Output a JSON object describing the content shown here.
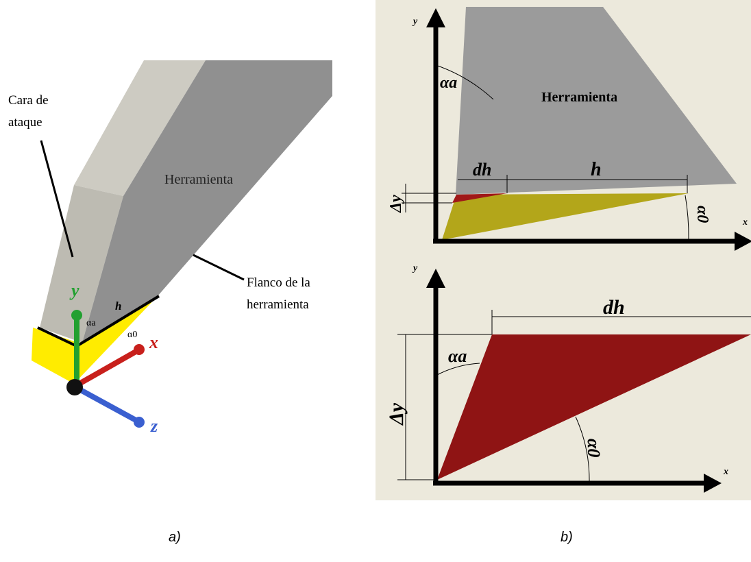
{
  "panel_a": {
    "face_label": [
      "Cara de",
      "ataque"
    ],
    "tool_label": "Herramienta",
    "flank_label": [
      "Flanco de la",
      "herramienta"
    ],
    "axis_y": "y",
    "axis_x": "x",
    "axis_z": "z",
    "h": "h",
    "rake_angle": "αa",
    "clearance_angle": "α0"
  },
  "panel_b": {
    "top": {
      "axis_y": "y",
      "axis_x": "x",
      "rake_angle": "αa",
      "tool_label": "Herramienta",
      "dh": "dh",
      "h": "h",
      "delta_y": "Δy",
      "clearance_angle": "α0"
    },
    "bottom": {
      "axis_y": "y",
      "axis_x": "x",
      "dh": "dh",
      "rake_angle": "αa",
      "delta_y": "Δy",
      "clearance_angle": "α0"
    }
  },
  "captions": [
    "a)",
    "b)"
  ]
}
